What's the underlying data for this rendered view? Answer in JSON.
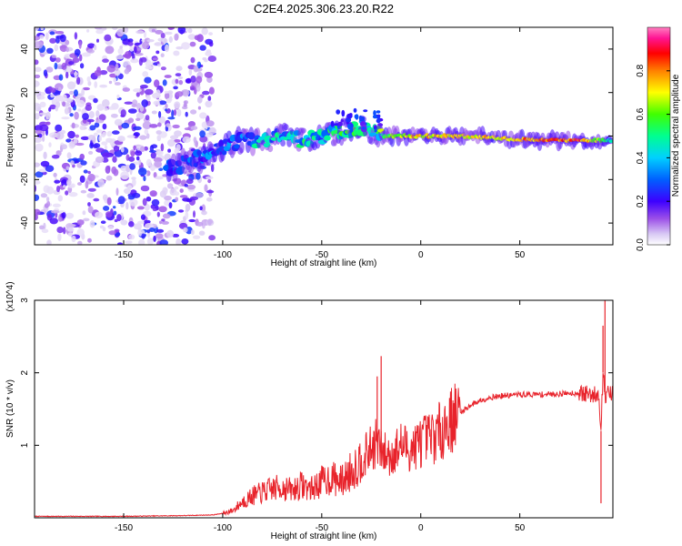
{
  "chart_data": [
    {
      "type": "heatmap",
      "title": "C2E4.2025.306.23.20.R22",
      "xlabel": "Height of straight line (km)",
      "ylabel": "Frequency (Hz)",
      "xlim": [
        -195,
        97
      ],
      "ylim": [
        -50,
        50
      ],
      "x_ticks": [
        -150,
        -100,
        -50,
        0,
        50
      ],
      "y_ticks": [
        -40,
        -20,
        0,
        20,
        40
      ],
      "colorbar": {
        "label": "Normalized spectral amplitude",
        "range": [
          0,
          1
        ],
        "ticks": [
          0.0,
          0.2,
          0.4,
          0.6,
          0.8
        ],
        "tick_labels": [
          "0.0",
          "0.2",
          "0.4",
          "0.6",
          "0.8"
        ],
        "colors": [
          "#ffffff",
          "#cdb8f0",
          "#8a2be2",
          "#3c00ff",
          "#0050ff",
          "#00c8ff",
          "#00ff90",
          "#40ff00",
          "#ffff00",
          "#ff8000",
          "#ff0000",
          "#ff1493",
          "#ff69b4"
        ]
      },
      "ridge": {
        "x": [
          -125,
          -110,
          -100,
          -90,
          -80,
          -70,
          -60,
          -50,
          -40,
          -30,
          -20,
          -10,
          0,
          20,
          40,
          60,
          80,
          95
        ],
        "freq": [
          -14,
          -10,
          -5,
          -2,
          -3,
          0,
          -2,
          0,
          2,
          4,
          0,
          0,
          0,
          0,
          -1,
          -2,
          -2,
          -2
        ],
        "amplitude": [
          0.25,
          0.3,
          0.3,
          0.35,
          0.4,
          0.4,
          0.42,
          0.45,
          0.45,
          0.5,
          0.55,
          0.65,
          0.75,
          0.7,
          0.75,
          0.8,
          0.85,
          0.5
        ]
      },
      "noise_region": [
        -195,
        -105
      ]
    },
    {
      "type": "line",
      "xlabel": "Height of straight line (km)",
      "ylabel": "SNR (10 * v/v)",
      "y_multiplier": "(x10^4)",
      "xlim": [
        -195,
        97
      ],
      "ylim": [
        0,
        3
      ],
      "x_ticks": [
        -150,
        -100,
        -50,
        0,
        50
      ],
      "y_ticks": [
        1,
        2,
        3
      ],
      "color": "#e8232b",
      "series": [
        {
          "name": "SNR",
          "x": [
            -195,
            -150,
            -120,
            -105,
            -100,
            -95,
            -90,
            -85,
            -80,
            -75,
            -70,
            -65,
            -60,
            -55,
            -50,
            -45,
            -40,
            -35,
            -30,
            -25,
            -22,
            -20,
            -15,
            -10,
            -5,
            0,
            5,
            10,
            15,
            20,
            25,
            30,
            35,
            40,
            50,
            60,
            70,
            75,
            80,
            85,
            88,
            90,
            91,
            92,
            93,
            95,
            97
          ],
          "y": [
            0.02,
            0.02,
            0.03,
            0.04,
            0.06,
            0.1,
            0.22,
            0.3,
            0.35,
            0.4,
            0.42,
            0.38,
            0.45,
            0.4,
            0.5,
            0.55,
            0.5,
            0.65,
            0.8,
            0.95,
            1.05,
            0.9,
            0.85,
            1.0,
            0.95,
            1.05,
            1.1,
            1.2,
            1.35,
            1.45,
            1.55,
            1.62,
            1.66,
            1.68,
            1.7,
            1.7,
            1.71,
            1.72,
            1.72,
            1.7,
            1.7,
            1.72,
            1.2,
            2.0,
            1.7,
            1.72,
            1.7
          ]
        }
      ],
      "spikes": [
        {
          "x": -22,
          "y": 1.95
        },
        {
          "x": -20,
          "y": 2.23
        },
        {
          "x": 91,
          "y": 0.2
        },
        {
          "x": 92,
          "y": 2.65
        },
        {
          "x": 93,
          "y": 3.0
        }
      ]
    }
  ]
}
